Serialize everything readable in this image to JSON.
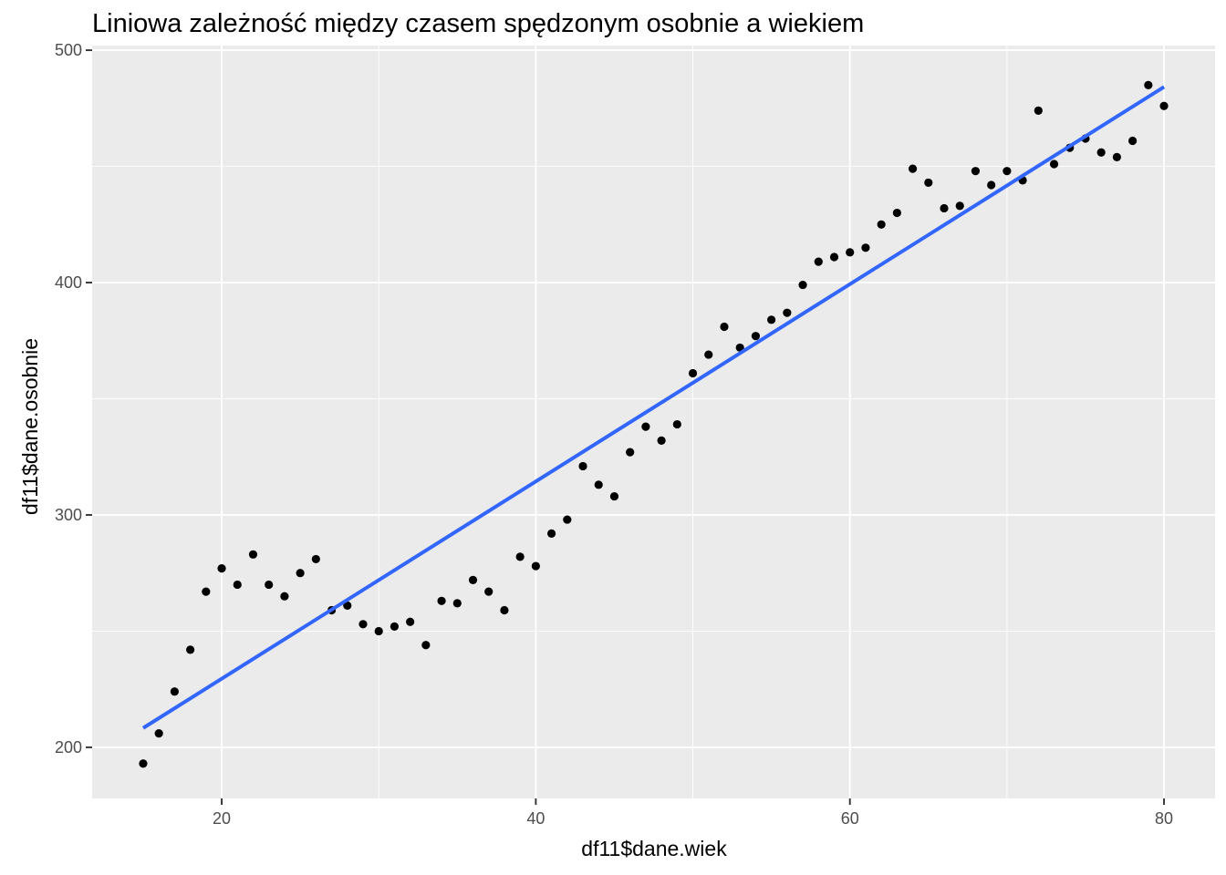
{
  "chart_data": {
    "type": "scatter",
    "title": "Liniowa zależność między czasem spędzonym osobnie a wiekiem",
    "xlabel": "df11$dane.wiek",
    "ylabel": "df11$dane.osobnie",
    "xlim": [
      11.75,
      83.25
    ],
    "ylim": [
      178,
      502
    ],
    "x_ticks": [
      20,
      40,
      60,
      80
    ],
    "y_ticks": [
      200,
      300,
      400,
      500
    ],
    "x_tick_labels": [
      "20",
      "40",
      "60",
      "80"
    ],
    "y_tick_labels": [
      "200",
      "300",
      "400",
      "500"
    ],
    "grid": true,
    "background_color": "#ebebeb",
    "grid_color": "#ffffff",
    "point_color": "#000000",
    "line_color": "#3366ff",
    "points": {
      "x": [
        15,
        16,
        17,
        18,
        19,
        20,
        21,
        22,
        23,
        24,
        25,
        26,
        27,
        28,
        29,
        30,
        31,
        32,
        33,
        34,
        35,
        36,
        37,
        38,
        39,
        40,
        41,
        42,
        43,
        44,
        45,
        46,
        47,
        48,
        49,
        50,
        51,
        52,
        53,
        54,
        55,
        56,
        57,
        58,
        59,
        60,
        61,
        62,
        63,
        64,
        65,
        66,
        67,
        68,
        69,
        70,
        71,
        72,
        73,
        74,
        75,
        76,
        77,
        78,
        79,
        80
      ],
      "y": [
        193,
        206,
        224,
        242,
        267,
        277,
        270,
        283,
        270,
        265,
        275,
        281,
        259,
        261,
        253,
        250,
        252,
        254,
        244,
        263,
        262,
        272,
        267,
        259,
        282,
        278,
        292,
        298,
        321,
        313,
        308,
        327,
        338,
        332,
        339,
        361,
        369,
        381,
        372,
        377,
        384,
        387,
        399,
        409,
        411,
        413,
        415,
        425,
        430,
        449,
        443,
        432,
        433,
        448,
        442,
        448,
        444,
        474,
        451,
        458,
        462,
        456,
        454,
        461,
        485,
        476
      ]
    },
    "regression_line": {
      "x": [
        15,
        80
      ],
      "y": [
        208.3,
        484.2
      ]
    }
  }
}
